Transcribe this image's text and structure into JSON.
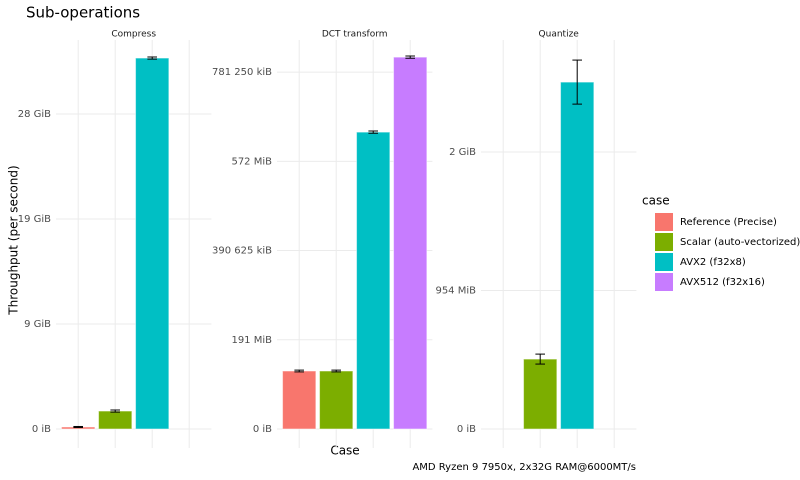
{
  "title": "Sub-operations",
  "y_label": "Throughput (per second)",
  "x_label": "Case",
  "caption": "AMD Ryzen 9 7950x, 2x32G RAM@6000MT/s",
  "legend_title": "case",
  "categories": [
    "Reference (Precise)",
    "Scalar (auto-vectorized)",
    "AVX2 (f32x8)",
    "AVX512 (f32x16)"
  ],
  "colors": [
    "#F8766D",
    "#7CAE00",
    "#00BFC4",
    "#C77CFF"
  ],
  "chart_data": [
    {
      "type": "bar",
      "title": "Compress",
      "values": [
        190000000,
        1710000000,
        35330000000,
        null
      ],
      "errors": [
        50000000,
        100000000,
        100000000,
        null
      ],
      "ylim": [
        -1810000000,
        37050000000
      ],
      "yticks": [
        {
          "value": 0,
          "label": "0 iB"
        },
        {
          "value": 10000000000,
          "label": "9 GiB"
        },
        {
          "value": 20000000000,
          "label": "19 GiB"
        },
        {
          "value": 30000000000,
          "label": "28 GiB"
        }
      ]
    },
    {
      "type": "bar",
      "title": "DCT transform",
      "values": [
        130000000,
        130000000,
        665500000,
        833600000
      ],
      "errors": [
        2000000,
        2000000,
        2500000,
        2500000
      ],
      "ylim": [
        -42600000,
        872000000
      ],
      "yticks": [
        {
          "value": 0,
          "label": "0 iB"
        },
        {
          "value": 200000000,
          "label": "191 MiB"
        },
        {
          "value": 400000000,
          "label": "390 625 kiB"
        },
        {
          "value": 600000000,
          "label": "572 MiB"
        },
        {
          "value": 800000000,
          "label": "781 250 kiB"
        }
      ]
    },
    {
      "type": "bar",
      "title": "Quantize",
      "values": [
        null,
        505000000,
        2505000000,
        null
      ],
      "errors": [
        null,
        36000000,
        159000000,
        null
      ],
      "ylim": [
        -137000000,
        2809000000
      ],
      "yticks": [
        {
          "value": 0,
          "label": "0 iB"
        },
        {
          "value": 1000000000,
          "label": "954 MiB"
        },
        {
          "value": 2000000000,
          "label": "2 GiB"
        }
      ]
    }
  ]
}
